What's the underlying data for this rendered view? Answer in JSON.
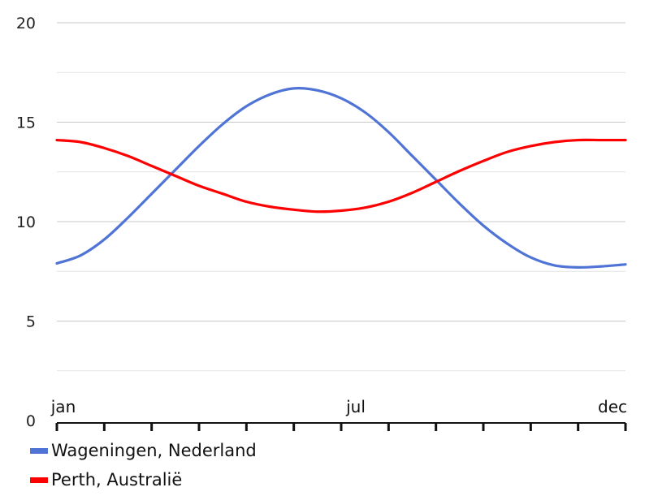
{
  "chart_data": {
    "type": "line",
    "title": "",
    "xlabel": "",
    "ylabel": "",
    "ylim": [
      0,
      20
    ],
    "yticks": [
      0,
      5,
      10,
      15,
      20
    ],
    "x_labels_shown": [
      "jan",
      "jul",
      "dec"
    ],
    "x_tick_count": 13,
    "grid": true,
    "legend_position": "bottom-left",
    "series": [
      {
        "name": "Wageningen, Nederland",
        "color": "#4f74d6",
        "x": [
          0,
          0.5,
          1,
          1.5,
          2,
          2.5,
          3,
          3.5,
          4,
          4.5,
          5,
          5.5,
          6,
          6.5,
          7,
          7.5,
          8,
          8.5,
          9,
          9.5,
          10,
          10.5,
          11,
          11.5,
          12
        ],
        "values": [
          7.9,
          8.3,
          9.1,
          10.2,
          11.4,
          12.6,
          13.8,
          14.9,
          15.8,
          16.4,
          16.7,
          16.6,
          16.2,
          15.5,
          14.5,
          13.3,
          12.1,
          10.9,
          9.8,
          8.9,
          8.2,
          7.8,
          7.7,
          7.75,
          7.85
        ]
      },
      {
        "name": "Perth, Australië",
        "color": "#ff0000",
        "x": [
          0,
          0.5,
          1,
          1.5,
          2,
          2.5,
          3,
          3.5,
          4,
          4.5,
          5,
          5.5,
          6,
          6.5,
          7,
          7.5,
          8,
          8.5,
          9,
          9.5,
          10,
          10.5,
          11,
          11.5,
          12
        ],
        "values": [
          14.1,
          14.0,
          13.7,
          13.3,
          12.8,
          12.3,
          11.8,
          11.4,
          11.0,
          10.75,
          10.6,
          10.5,
          10.55,
          10.7,
          11.0,
          11.45,
          12.0,
          12.55,
          13.05,
          13.5,
          13.8,
          14.0,
          14.1,
          14.1,
          14.1
        ]
      }
    ]
  }
}
